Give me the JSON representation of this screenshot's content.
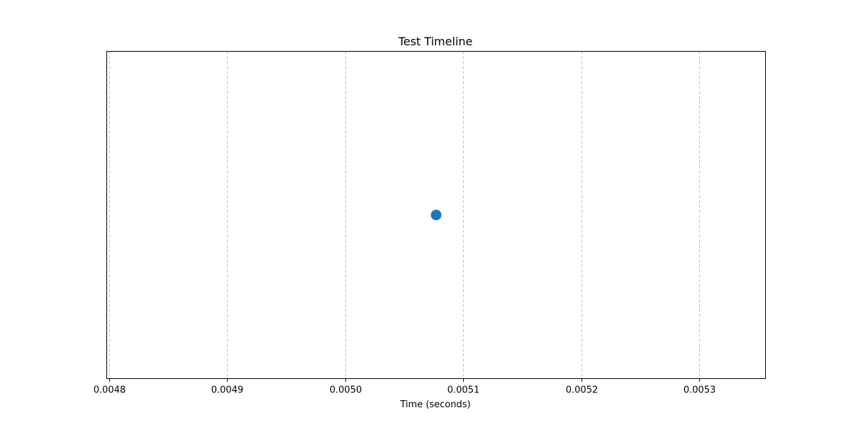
{
  "chart_data": {
    "type": "scatter",
    "title": "Test Timeline",
    "xlabel": "Time (seconds)",
    "ylabel": "",
    "xlim": [
      0.004798,
      0.005356
    ],
    "ylim": [
      -1,
      1
    ],
    "xticks": [
      0.0048,
      0.0049,
      0.005,
      0.0051,
      0.0052,
      0.0053
    ],
    "xtick_labels": [
      "0.0048",
      "0.0049",
      "0.0050",
      "0.0051",
      "0.0052",
      "0.0053"
    ],
    "grid": {
      "x": true,
      "y": false,
      "style": "dashed"
    },
    "y_axis_visible": false,
    "series": [
      {
        "color": "#1f77b4",
        "points": [
          {
            "x": 0.005077,
            "y": 0
          }
        ]
      }
    ]
  }
}
